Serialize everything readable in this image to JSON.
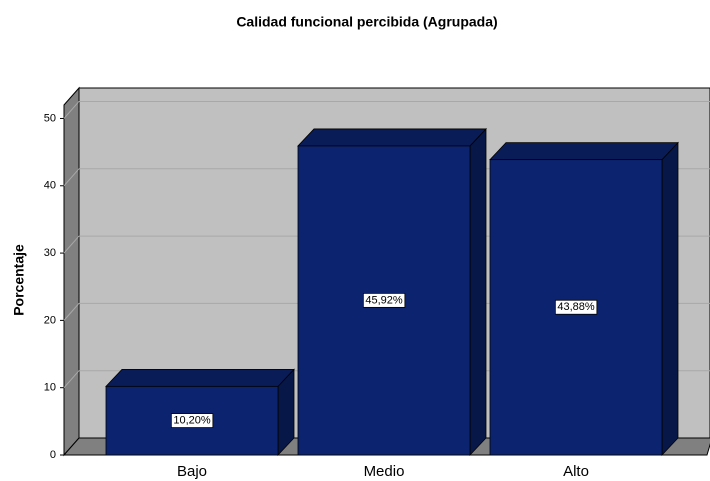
{
  "chart_data": {
    "type": "bar",
    "title": "Calidad funcional percibida  (Agrupada)",
    "ylabel": "Porcentaje",
    "categories": [
      "Bajo",
      "Medio",
      "Alto"
    ],
    "values": [
      10.2,
      45.92,
      43.88
    ],
    "value_labels": [
      "10,20%",
      "45,92%",
      "43,88%"
    ],
    "color": "#0c2470",
    "ylim": [
      0,
      52
    ],
    "yticks": [
      0,
      10,
      20,
      30,
      40,
      50
    ],
    "grid": true
  }
}
